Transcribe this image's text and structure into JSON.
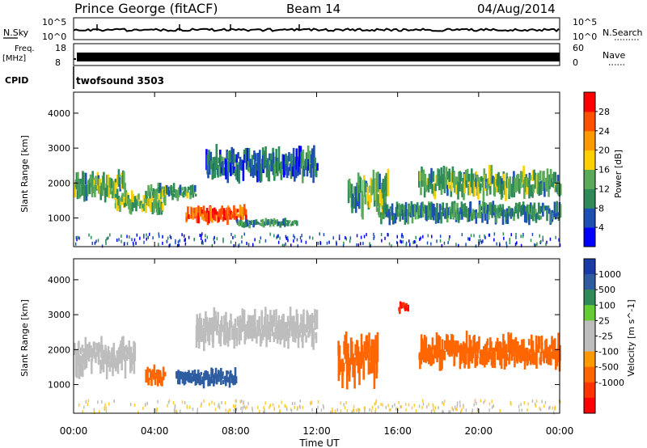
{
  "header": {
    "station": "Prince George (fitACF)",
    "beam": "Beam 14",
    "date": "04/Aug/2014"
  },
  "noise_panel": {
    "left_label": "N.Sky",
    "right_label": "N.Search",
    "left_ticks": [
      "10^5",
      "10^0"
    ],
    "right_ticks": [
      "10^5",
      "10^0"
    ]
  },
  "freq_panel": {
    "left_label": "Freq.",
    "left_unit": "[MHz]",
    "left_ticks": [
      "18",
      "8"
    ],
    "right_label": "Nave",
    "right_ticks": [
      "60",
      "0"
    ]
  },
  "cpid": {
    "label": "CPID",
    "value": "twofsound 3503"
  },
  "colors": {
    "power": [
      "#0000ff",
      "#1e50b4",
      "#2e8b57",
      "#5aaa5a",
      "#ffd000",
      "#ff9900",
      "#ff5000",
      "#ff0000"
    ],
    "velocity": [
      "#1a3aa8",
      "#2e5ca0",
      "#2e8b57",
      "#66cc33",
      "#bdbdbd",
      "#bdbdbd",
      "#ff9900",
      "#ff6600",
      "#ff3300",
      "#ff0000"
    ]
  },
  "chart_data": [
    {
      "type": "heatmap",
      "name": "power",
      "ylabel": "Slant Range [km]",
      "xlabel": "",
      "yticks": [
        "1000",
        "2000",
        "3000",
        "4000"
      ],
      "ytick_values": [
        1000,
        2000,
        3000,
        4000
      ],
      "ylim": [
        180,
        4600
      ],
      "xlim": [
        0,
        24
      ],
      "colorbar": {
        "label": "Power [dB]",
        "ticks": [
          "4",
          "8",
          "12",
          "16",
          "20",
          "24",
          "28"
        ],
        "range": [
          0,
          32
        ]
      },
      "bands": [
        {
          "t0": 0.0,
          "t1": 2.5,
          "r0": 1400,
          "r1": 2400,
          "level": 12
        },
        {
          "t0": 2.0,
          "t1": 4.5,
          "r0": 1100,
          "r1": 1800,
          "level": 14
        },
        {
          "t0": 3.5,
          "t1": 6.0,
          "r0": 1500,
          "r1": 2000,
          "level": 12
        },
        {
          "t0": 5.5,
          "t1": 8.5,
          "r0": 800,
          "r1": 1400,
          "level": 26
        },
        {
          "t0": 6.5,
          "t1": 12.0,
          "r0": 2000,
          "r1": 3100,
          "level": 8
        },
        {
          "t0": 8.0,
          "t1": 11.0,
          "r0": 700,
          "r1": 1000,
          "level": 10
        },
        {
          "t0": 13.5,
          "t1": 15.5,
          "r0": 1000,
          "r1": 2400,
          "level": 12
        },
        {
          "t0": 15.0,
          "t1": 24.0,
          "r0": 800,
          "r1": 1500,
          "level": 10
        },
        {
          "t0": 17.0,
          "t1": 24.0,
          "r0": 1500,
          "r1": 2500,
          "level": 12
        }
      ]
    },
    {
      "type": "heatmap",
      "name": "velocity",
      "ylabel": "Slant Range [km]",
      "xlabel": "Time UT",
      "yticks": [
        "1000",
        "2000",
        "3000",
        "4000"
      ],
      "ytick_values": [
        1000,
        2000,
        3000,
        4000
      ],
      "ylim": [
        180,
        4600
      ],
      "xlim": [
        0,
        24
      ],
      "xticks": [
        "00:00",
        "04:00",
        "08:00",
        "12:00",
        "16:00",
        "20:00",
        "00:00"
      ],
      "xtick_values": [
        0,
        4,
        8,
        12,
        16,
        20,
        24
      ],
      "colorbar": {
        "label": "Velocity [m s^-1]",
        "ticks": [
          "1000",
          "500",
          "100",
          "25",
          "-25",
          "-100",
          "-500",
          "-1000"
        ]
      },
      "bands": [
        {
          "t0": 0.0,
          "t1": 3.0,
          "r0": 1200,
          "r1": 2400,
          "vel": 0
        },
        {
          "t0": 3.5,
          "t1": 4.5,
          "r0": 900,
          "r1": 1600,
          "vel": -300
        },
        {
          "t0": 5.0,
          "t1": 8.0,
          "r0": 900,
          "r1": 1500,
          "vel": 200
        },
        {
          "t0": 6.0,
          "t1": 12.0,
          "r0": 2000,
          "r1": 3200,
          "vel": 0
        },
        {
          "t0": 13.0,
          "t1": 15.0,
          "r0": 900,
          "r1": 2500,
          "vel": -300
        },
        {
          "t0": 16.0,
          "t1": 16.5,
          "r0": 3000,
          "r1": 3400,
          "vel": -1000
        },
        {
          "t0": 17.0,
          "t1": 24.0,
          "r0": 1400,
          "r1": 2500,
          "vel": -300
        }
      ]
    }
  ]
}
